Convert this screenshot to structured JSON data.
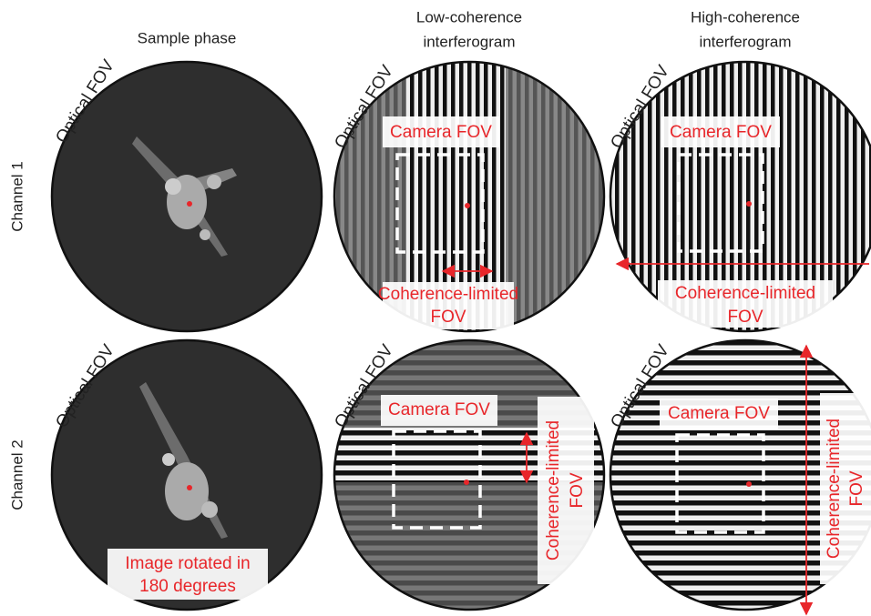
{
  "columns": [
    [
      "Sample phase"
    ],
    [
      "Low-coherence",
      "interferogram"
    ],
    [
      "High-coherence",
      "interferogram"
    ]
  ],
  "rows": [
    "Channel 1",
    "Channel 2"
  ],
  "panels": [
    {
      "optical_fov": "Optical FOV"
    },
    {
      "optical_fov": "Optical FOV",
      "camera_fov": "Camera FOV",
      "coherence_fov": [
        "Coherence-limited",
        "FOV"
      ]
    },
    {
      "optical_fov": "Optical FOV",
      "camera_fov": "Camera FOV",
      "coherence_fov": [
        "Coherence-limited",
        "FOV"
      ]
    },
    {
      "optical_fov": "Optical FOV",
      "note": [
        "Image rotated in",
        "180 degrees"
      ]
    },
    {
      "optical_fov": "Optical FOV",
      "camera_fov": "Camera FOV",
      "coherence_fov": [
        "Coherence-limited",
        "FOV"
      ]
    },
    {
      "optical_fov": "Optical FOV",
      "camera_fov": "Camera FOV",
      "coherence_fov": [
        "Coherence-limited",
        "FOV"
      ]
    }
  ]
}
